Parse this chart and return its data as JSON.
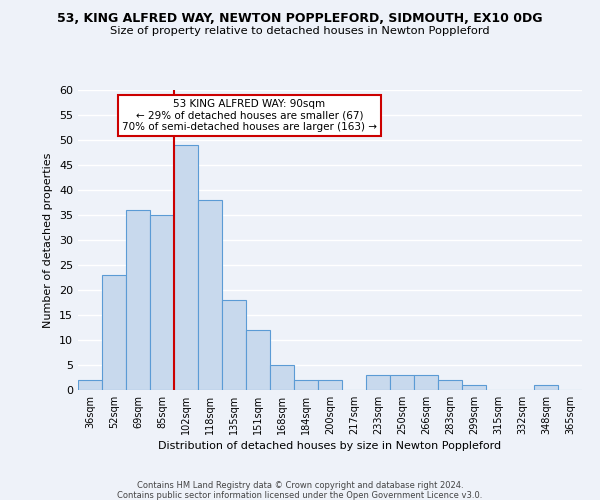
{
  "title": "53, KING ALFRED WAY, NEWTON POPPLEFORD, SIDMOUTH, EX10 0DG",
  "subtitle": "Size of property relative to detached houses in Newton Poppleford",
  "xlabel": "Distribution of detached houses by size in Newton Poppleford",
  "ylabel": "Number of detached properties",
  "bar_color": "#c8d9ed",
  "bar_edge_color": "#5b9bd5",
  "categories": [
    "36sqm",
    "52sqm",
    "69sqm",
    "85sqm",
    "102sqm",
    "118sqm",
    "135sqm",
    "151sqm",
    "168sqm",
    "184sqm",
    "200sqm",
    "217sqm",
    "233sqm",
    "250sqm",
    "266sqm",
    "283sqm",
    "299sqm",
    "315sqm",
    "332sqm",
    "348sqm",
    "365sqm"
  ],
  "values": [
    2,
    23,
    36,
    35,
    49,
    38,
    18,
    12,
    5,
    2,
    2,
    0,
    3,
    3,
    3,
    2,
    1,
    0,
    0,
    1,
    0
  ],
  "ylim": [
    0,
    60
  ],
  "yticks": [
    0,
    5,
    10,
    15,
    20,
    25,
    30,
    35,
    40,
    45,
    50,
    55,
    60
  ],
  "vline_x": 3.5,
  "vline_color": "#cc0000",
  "annotation_title": "53 KING ALFRED WAY: 90sqm",
  "annotation_line1": "← 29% of detached houses are smaller (67)",
  "annotation_line2": "70% of semi-detached houses are larger (163) →",
  "annotation_box_edge": "#cc0000",
  "footer1": "Contains HM Land Registry data © Crown copyright and database right 2024.",
  "footer2": "Contains public sector information licensed under the Open Government Licence v3.0.",
  "background_color": "#eef2f9",
  "grid_color": "#ffffff"
}
